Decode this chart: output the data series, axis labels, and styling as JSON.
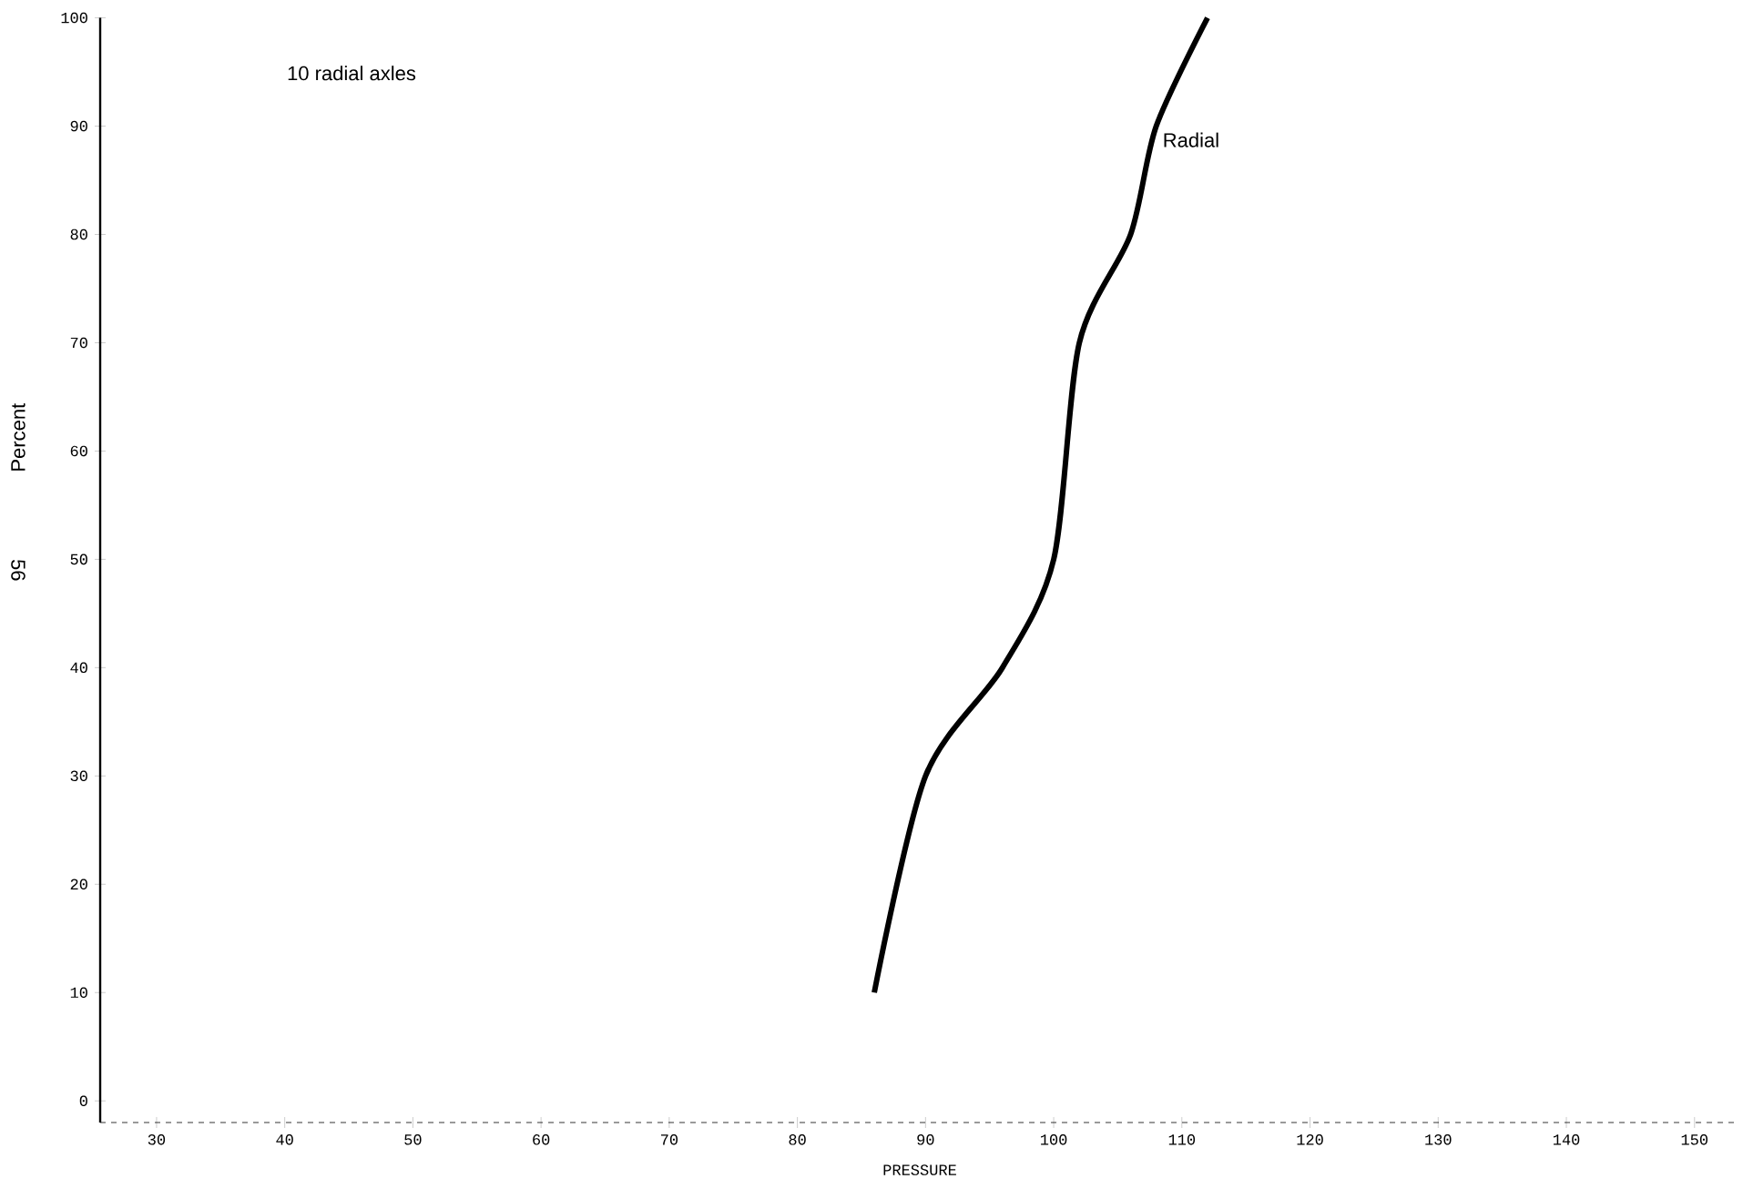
{
  "chart_data": {
    "type": "line",
    "xlabel": "PRESSURE",
    "ylabel": "Percent",
    "annotations": [
      "10 radial axles",
      "56"
    ],
    "xlim": [
      25.6,
      153.5
    ],
    "ylim": [
      -2,
      100
    ],
    "xticks": [
      30,
      40,
      50,
      60,
      70,
      80,
      90,
      100,
      110,
      120,
      130,
      140,
      150
    ],
    "yticks": [
      0,
      10,
      20,
      30,
      40,
      50,
      60,
      70,
      80,
      90,
      100
    ],
    "series": [
      {
        "name": "Radial",
        "color": "#000000",
        "x": [
          86,
          90,
          96,
          100,
          102,
          106,
          108,
          112
        ],
        "values": [
          10,
          30,
          40,
          50,
          70,
          80,
          90,
          100
        ]
      }
    ],
    "line_style": "solid",
    "grid": false
  }
}
